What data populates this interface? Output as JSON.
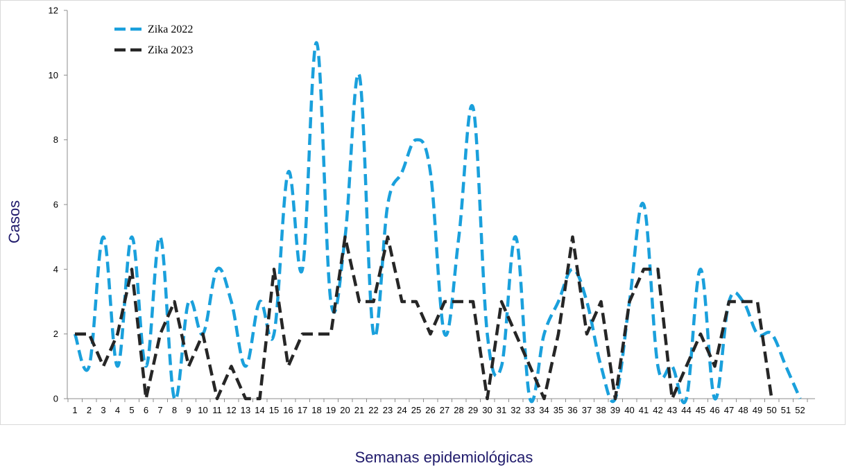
{
  "chart_data": {
    "type": "line",
    "title": "",
    "xlabel": "Semanas epidemiológicas",
    "ylabel": "Casos",
    "x": [
      1,
      2,
      3,
      4,
      5,
      6,
      7,
      8,
      9,
      10,
      11,
      12,
      13,
      14,
      15,
      16,
      17,
      18,
      19,
      20,
      21,
      22,
      23,
      24,
      25,
      26,
      27,
      28,
      29,
      30,
      31,
      32,
      33,
      34,
      35,
      36,
      37,
      38,
      39,
      40,
      41,
      42,
      43,
      44,
      45,
      46,
      47,
      48,
      49,
      50,
      51,
      52
    ],
    "xtick_labels": [
      "1",
      "2",
      "3",
      "4",
      "5",
      "6",
      "7",
      "8",
      "9",
      "10",
      "11",
      "12",
      "13",
      "14",
      "15",
      "16",
      "17",
      "18",
      "19",
      "20",
      "21",
      "22",
      "23",
      "24",
      "25",
      "26",
      "27",
      "28",
      "29",
      "30",
      "31",
      "32",
      "33",
      "34",
      "35",
      "36",
      "37",
      "38",
      "39",
      "40",
      "41",
      "42",
      "43",
      "44",
      "45",
      "46",
      "47",
      "48",
      "49",
      "50",
      "51",
      "52"
    ],
    "ylim": [
      0,
      12
    ],
    "yticks": [
      0,
      2,
      4,
      6,
      8,
      10,
      12
    ],
    "ytick_labels": [
      "0",
      "2",
      "4",
      "6",
      "8",
      "10",
      "12"
    ],
    "grid": false,
    "legend_position": "top-left",
    "series": [
      {
        "name": "Zika 2022",
        "color": "#1aa0dc",
        "style": "dashed",
        "values": [
          2,
          1,
          5,
          1,
          5,
          1,
          5,
          0,
          3,
          2,
          4,
          3,
          1,
          3,
          2,
          7,
          4,
          11,
          3,
          5,
          10,
          2,
          6,
          7,
          8,
          7,
          2,
          5,
          9,
          2,
          1,
          5,
          0,
          2,
          3,
          4,
          3,
          1,
          0,
          3,
          6,
          1,
          1,
          0,
          4,
          0,
          3,
          3,
          2,
          2,
          1,
          0
        ]
      },
      {
        "name": "Zika 2023",
        "color": "#262626",
        "style": "dashed",
        "values": [
          2,
          2,
          1,
          2,
          4,
          0,
          2,
          3,
          1,
          2,
          0,
          1,
          0,
          0,
          4,
          1,
          2,
          2,
          2,
          5,
          3,
          3,
          5,
          3,
          3,
          2,
          3,
          3,
          3,
          0,
          3,
          2,
          1,
          0,
          2,
          5,
          2,
          3,
          0,
          3,
          4,
          4,
          0,
          1,
          2,
          1,
          3,
          3,
          3,
          0,
          null,
          null
        ]
      }
    ]
  }
}
